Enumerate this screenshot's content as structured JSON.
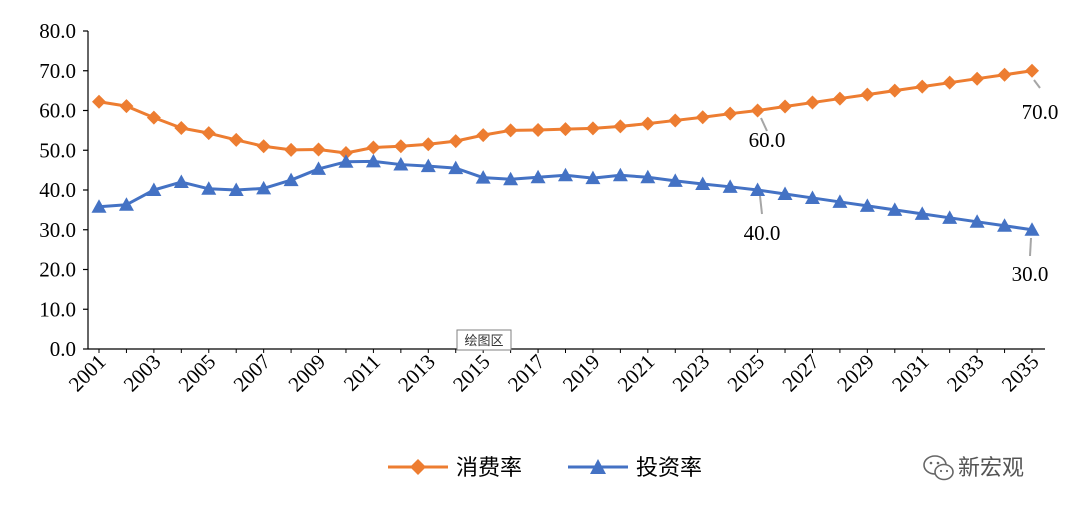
{
  "chart_data": {
    "type": "line",
    "x": [
      "2001",
      "2002",
      "2003",
      "2004",
      "2005",
      "2006",
      "2007",
      "2008",
      "2009",
      "2010",
      "2011",
      "2012",
      "2013",
      "2014",
      "2015",
      "2016",
      "2017",
      "2018",
      "2019",
      "2020",
      "2021",
      "2022",
      "2023",
      "2024",
      "2025",
      "2026",
      "2027",
      "2028",
      "2029",
      "2030",
      "2031",
      "2032",
      "2033",
      "2034",
      "2035"
    ],
    "xtick_labels": [
      "2001",
      "2003",
      "2005",
      "2007",
      "2009",
      "2011",
      "2013",
      "2015",
      "2017",
      "2019",
      "2021",
      "2023",
      "2025",
      "2027",
      "2029",
      "2031",
      "2033",
      "2035"
    ],
    "ytick_labels": [
      "0.0",
      "10.0",
      "20.0",
      "30.0",
      "40.0",
      "50.0",
      "60.0",
      "70.0",
      "80.0"
    ],
    "ylim": [
      0,
      80
    ],
    "grid": false,
    "legend_position": "bottom",
    "series": [
      {
        "name": "消费率",
        "color": "#ED7D31",
        "marker": "diamond",
        "values": [
          62.2,
          61.1,
          58.2,
          55.6,
          54.3,
          52.6,
          51.0,
          50.1,
          50.2,
          49.3,
          50.7,
          51.0,
          51.5,
          52.3,
          53.8,
          55.0,
          55.1,
          55.3,
          55.5,
          56.0,
          56.7,
          57.5,
          58.3,
          59.2,
          60.0,
          61.0,
          62.0,
          63.0,
          64.0,
          65.0,
          66.0,
          67.0,
          68.0,
          69.0,
          70.0
        ]
      },
      {
        "name": "投资率",
        "color": "#4472C4",
        "marker": "triangle",
        "values": [
          35.8,
          36.3,
          40.0,
          42.0,
          40.3,
          40.0,
          40.4,
          42.5,
          45.3,
          47.1,
          47.2,
          46.4,
          46.0,
          45.5,
          43.1,
          42.7,
          43.2,
          43.7,
          43.0,
          43.7,
          43.2,
          42.3,
          41.5,
          40.8,
          40.0,
          39.0,
          38.0,
          37.0,
          36.0,
          35.0,
          34.0,
          33.0,
          32.0,
          31.0,
          30.0
        ]
      }
    ],
    "annotations": [
      {
        "series": 0,
        "index": 24,
        "text": "60.0"
      },
      {
        "series": 0,
        "index": 34,
        "text": "70.0"
      },
      {
        "series": 1,
        "index": 24,
        "text": "40.0"
      },
      {
        "series": 1,
        "index": 34,
        "text": "30.0"
      }
    ],
    "tooltip": "绘图区"
  },
  "watermark": {
    "icon": "wechat-icon",
    "text": "新宏观"
  }
}
